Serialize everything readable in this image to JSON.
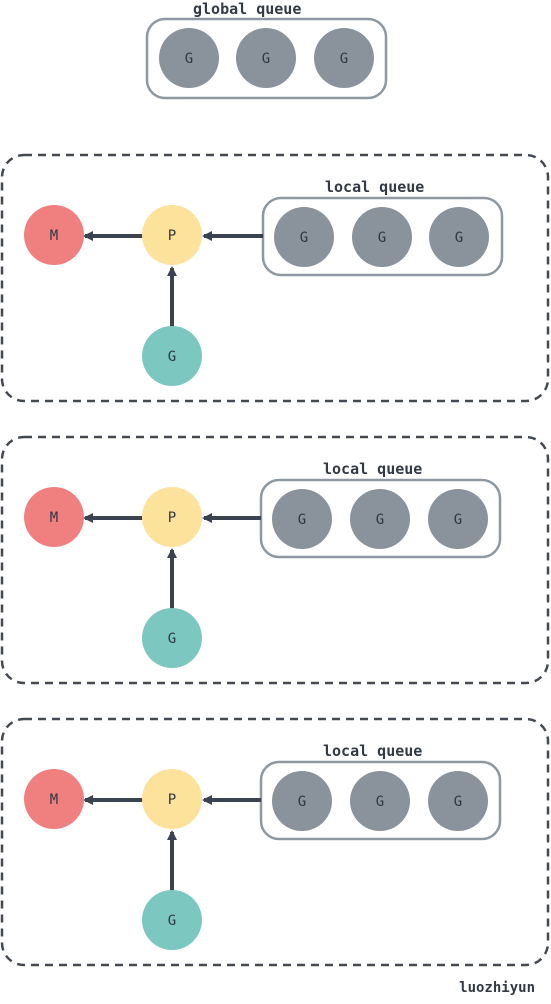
{
  "global_queue": {
    "label": "global queue",
    "goroutines": [
      "G",
      "G",
      "G"
    ]
  },
  "processors": [
    {
      "machine_label": "M",
      "processor_label": "P",
      "running_goroutine": "G",
      "local_queue": {
        "label": "local queue",
        "goroutines": [
          "G",
          "G",
          "G"
        ]
      }
    },
    {
      "machine_label": "M",
      "processor_label": "P",
      "running_goroutine": "G",
      "local_queue": {
        "label": "local queue",
        "goroutines": [
          "G",
          "G",
          "G"
        ]
      }
    },
    {
      "machine_label": "M",
      "processor_label": "P",
      "running_goroutine": "G",
      "local_queue": {
        "label": "local queue",
        "goroutines": [
          "G",
          "G",
          "G"
        ]
      }
    }
  ],
  "watermark": "luozhiyun",
  "colors": {
    "goroutine_queued": "#8a939c",
    "goroutine_running": "#7cc7bf",
    "machine": "#f08080",
    "processor": "#fde29c",
    "arrow": "#3c4350",
    "border": "#8f98a1",
    "dashed_border": "#444a52"
  }
}
